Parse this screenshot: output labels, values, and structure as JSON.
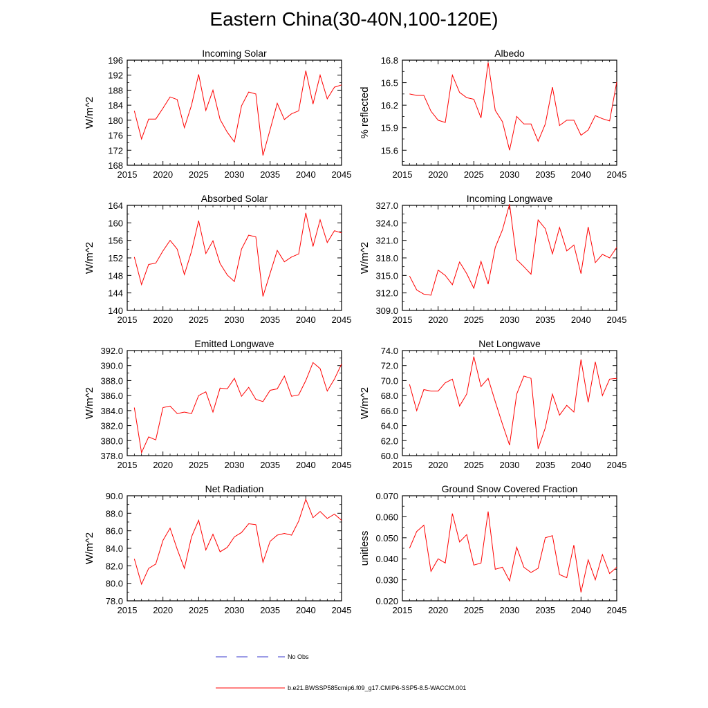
{
  "title": "Eastern China(30-40N,100-120E)",
  "colors": {
    "series": "#ff0000",
    "obs": "#3a3acc",
    "axis": "#000000"
  },
  "legend": {
    "obs_label": "No Obs",
    "model_label": "b.e21.BWSSP585cmip6.f09_g17.CMIP6-SSP5-8.5-WACCM.001"
  },
  "chart_data": [
    {
      "type": "line",
      "title": "Incoming Solar",
      "ylabel": "W/m^2",
      "xlim": [
        2015,
        2045
      ],
      "xticks": [
        2015,
        2020,
        2025,
        2030,
        2035,
        2040,
        2045
      ],
      "ylim": [
        168,
        196
      ],
      "yticks": [
        "168",
        "172",
        "176",
        "180",
        "184",
        "188",
        "192",
        "196"
      ],
      "x": [
        2016,
        2017,
        2018,
        2019,
        2020,
        2021,
        2022,
        2023,
        2024,
        2025,
        2026,
        2027,
        2028,
        2029,
        2030,
        2031,
        2032,
        2033,
        2034,
        2035,
        2036,
        2037,
        2038,
        2039,
        2040,
        2041,
        2042,
        2043,
        2044,
        2045
      ],
      "values": [
        182.5,
        175.0,
        180.3,
        180.3,
        183.2,
        186.2,
        185.5,
        178.0,
        184.0,
        192.2,
        182.6,
        188.0,
        180.2,
        176.8,
        174.2,
        183.8,
        187.5,
        187.0,
        170.6,
        177.5,
        184.5,
        180.2,
        181.7,
        182.5,
        193.2,
        184.3,
        192.0,
        185.7,
        188.8,
        189.4
      ]
    },
    {
      "type": "line",
      "title": "Albedo",
      "ylabel": "% reflected",
      "xlim": [
        2015,
        2045
      ],
      "xticks": [
        2015,
        2020,
        2025,
        2030,
        2035,
        2040,
        2045
      ],
      "ylim": [
        15.4,
        16.8
      ],
      "yticks": [
        "15.6",
        "15.9",
        "16.2",
        "16.5",
        "16.8"
      ],
      "x": [
        2016,
        2017,
        2018,
        2019,
        2020,
        2021,
        2022,
        2023,
        2024,
        2025,
        2026,
        2027,
        2028,
        2029,
        2030,
        2031,
        2032,
        2033,
        2034,
        2035,
        2036,
        2037,
        2038,
        2039,
        2040,
        2041,
        2042,
        2043,
        2044,
        2045
      ],
      "values": [
        16.35,
        16.33,
        16.33,
        16.12,
        16.0,
        15.97,
        16.6,
        16.37,
        16.3,
        16.28,
        16.03,
        16.77,
        16.13,
        15.98,
        15.6,
        16.05,
        15.95,
        15.95,
        15.72,
        15.95,
        16.44,
        15.93,
        16.0,
        16.0,
        15.8,
        15.87,
        16.06,
        16.02,
        15.99,
        16.51
      ]
    },
    {
      "type": "line",
      "title": "Absorbed Solar",
      "ylabel": "W/m^2",
      "xlim": [
        2015,
        2045
      ],
      "xticks": [
        2015,
        2020,
        2025,
        2030,
        2035,
        2040,
        2045
      ],
      "ylim": [
        140,
        164
      ],
      "yticks": [
        "140",
        "144",
        "148",
        "152",
        "156",
        "160",
        "164"
      ],
      "x": [
        2016,
        2017,
        2018,
        2019,
        2020,
        2021,
        2022,
        2023,
        2024,
        2025,
        2026,
        2027,
        2028,
        2029,
        2030,
        2031,
        2032,
        2033,
        2034,
        2035,
        2036,
        2037,
        2038,
        2039,
        2040,
        2041,
        2042,
        2043,
        2044,
        2045
      ],
      "values": [
        152.2,
        145.9,
        150.5,
        150.8,
        153.6,
        156.0,
        154.0,
        148.2,
        153.5,
        160.5,
        153.0,
        155.9,
        150.7,
        148.1,
        146.6,
        154.0,
        157.2,
        156.8,
        143.2,
        148.5,
        153.7,
        151.1,
        152.2,
        152.9,
        162.3,
        154.6,
        160.7,
        155.5,
        158.2,
        157.7
      ]
    },
    {
      "type": "line",
      "title": "Incoming Longwave",
      "ylabel": "W/m^2",
      "xlim": [
        2015,
        2045
      ],
      "xticks": [
        2015,
        2020,
        2025,
        2030,
        2035,
        2040,
        2045
      ],
      "ylim": [
        309.0,
        327.0
      ],
      "yticks": [
        "309.0",
        "312.0",
        "315.0",
        "318.0",
        "321.0",
        "324.0",
        "327.0"
      ],
      "x": [
        2016,
        2017,
        2018,
        2019,
        2020,
        2021,
        2022,
        2023,
        2024,
        2025,
        2026,
        2027,
        2028,
        2029,
        2030,
        2031,
        2032,
        2033,
        2034,
        2035,
        2036,
        2037,
        2038,
        2039,
        2040,
        2041,
        2042,
        2043,
        2044,
        2045
      ],
      "values": [
        314.9,
        312.5,
        311.8,
        311.6,
        315.9,
        315.0,
        313.4,
        317.3,
        315.3,
        312.8,
        317.4,
        313.5,
        319.8,
        322.8,
        327.2,
        317.7,
        316.5,
        315.2,
        324.5,
        323.0,
        318.7,
        323.2,
        319.2,
        320.2,
        315.3,
        323.3,
        317.2,
        318.6,
        318.0,
        319.8
      ]
    },
    {
      "type": "line",
      "title": "Emitted Longwave",
      "ylabel": "W/m^2",
      "xlim": [
        2015,
        2045
      ],
      "xticks": [
        2015,
        2020,
        2025,
        2030,
        2035,
        2040,
        2045
      ],
      "ylim": [
        378.0,
        392.0
      ],
      "yticks": [
        "378.0",
        "380.0",
        "382.0",
        "384.0",
        "386.0",
        "388.0",
        "390.0",
        "392.0"
      ],
      "x": [
        2016,
        2017,
        2018,
        2019,
        2020,
        2021,
        2022,
        2023,
        2024,
        2025,
        2026,
        2027,
        2028,
        2029,
        2030,
        2031,
        2032,
        2033,
        2034,
        2035,
        2036,
        2037,
        2038,
        2039,
        2040,
        2041,
        2042,
        2043,
        2044,
        2045
      ],
      "values": [
        384.4,
        378.4,
        380.5,
        380.1,
        384.4,
        384.6,
        383.6,
        383.8,
        383.6,
        386.0,
        386.5,
        383.8,
        387.0,
        386.9,
        388.3,
        385.9,
        387.1,
        385.5,
        385.2,
        386.7,
        386.9,
        388.6,
        385.9,
        386.1,
        388.0,
        390.4,
        389.6,
        386.6,
        388.2,
        390.2
      ]
    },
    {
      "type": "line",
      "title": "Net Longwave",
      "ylabel": "W/m^2",
      "xlim": [
        2015,
        2045
      ],
      "xticks": [
        2015,
        2020,
        2025,
        2030,
        2035,
        2040,
        2045
      ],
      "ylim": [
        60.0,
        74.0
      ],
      "yticks": [
        "60.0",
        "62.0",
        "64.0",
        "66.0",
        "68.0",
        "70.0",
        "72.0",
        "74.0"
      ],
      "x": [
        2016,
        2017,
        2018,
        2019,
        2020,
        2021,
        2022,
        2023,
        2024,
        2025,
        2026,
        2027,
        2028,
        2029,
        2030,
        2031,
        2032,
        2033,
        2034,
        2035,
        2036,
        2037,
        2038,
        2039,
        2040,
        2041,
        2042,
        2043,
        2044,
        2045
      ],
      "values": [
        69.5,
        66.0,
        68.8,
        68.6,
        68.6,
        69.7,
        70.2,
        66.6,
        68.2,
        73.2,
        69.2,
        70.3,
        67.2,
        64.2,
        61.4,
        68.2,
        70.6,
        70.3,
        60.9,
        63.7,
        68.2,
        65.4,
        66.7,
        65.8,
        72.8,
        67.1,
        72.5,
        68.0,
        70.2,
        70.3
      ]
    },
    {
      "type": "line",
      "title": "Net Radiation",
      "ylabel": "W/m^2",
      "xlim": [
        2015,
        2045
      ],
      "xticks": [
        2015,
        2020,
        2025,
        2030,
        2035,
        2040,
        2045
      ],
      "ylim": [
        78.0,
        90.0
      ],
      "yticks": [
        "78.0",
        "80.0",
        "82.0",
        "84.0",
        "86.0",
        "88.0",
        "90.0"
      ],
      "x": [
        2016,
        2017,
        2018,
        2019,
        2020,
        2021,
        2022,
        2023,
        2024,
        2025,
        2026,
        2027,
        2028,
        2029,
        2030,
        2031,
        2032,
        2033,
        2034,
        2035,
        2036,
        2037,
        2038,
        2039,
        2040,
        2041,
        2042,
        2043,
        2044,
        2045
      ],
      "values": [
        82.8,
        79.9,
        81.7,
        82.2,
        84.9,
        86.3,
        83.9,
        81.7,
        85.3,
        87.2,
        83.8,
        85.6,
        83.6,
        84.1,
        85.3,
        85.8,
        86.8,
        86.7,
        82.4,
        84.8,
        85.5,
        85.7,
        85.5,
        87.1,
        89.6,
        87.5,
        88.2,
        87.4,
        87.9,
        87.2
      ]
    },
    {
      "type": "line",
      "title": "Ground Snow Covered Fraction",
      "ylabel": "unitless",
      "xlim": [
        2015,
        2045
      ],
      "xticks": [
        2015,
        2020,
        2025,
        2030,
        2035,
        2040,
        2045
      ],
      "ylim": [
        0.02,
        0.07
      ],
      "yticks": [
        "0.020",
        "0.030",
        "0.040",
        "0.050",
        "0.060",
        "0.070"
      ],
      "x": [
        2016,
        2017,
        2018,
        2019,
        2020,
        2021,
        2022,
        2023,
        2024,
        2025,
        2026,
        2027,
        2028,
        2029,
        2030,
        2031,
        2032,
        2033,
        2034,
        2035,
        2036,
        2037,
        2038,
        2039,
        2040,
        2041,
        2042,
        2043,
        2044,
        2045
      ],
      "values": [
        0.045,
        0.053,
        0.056,
        0.034,
        0.04,
        0.038,
        0.0615,
        0.048,
        0.0515,
        0.037,
        0.038,
        0.0625,
        0.035,
        0.036,
        0.0295,
        0.0455,
        0.036,
        0.0335,
        0.0355,
        0.05,
        0.051,
        0.0325,
        0.031,
        0.0465,
        0.024,
        0.0395,
        0.03,
        0.042,
        0.033,
        0.036
      ]
    }
  ]
}
